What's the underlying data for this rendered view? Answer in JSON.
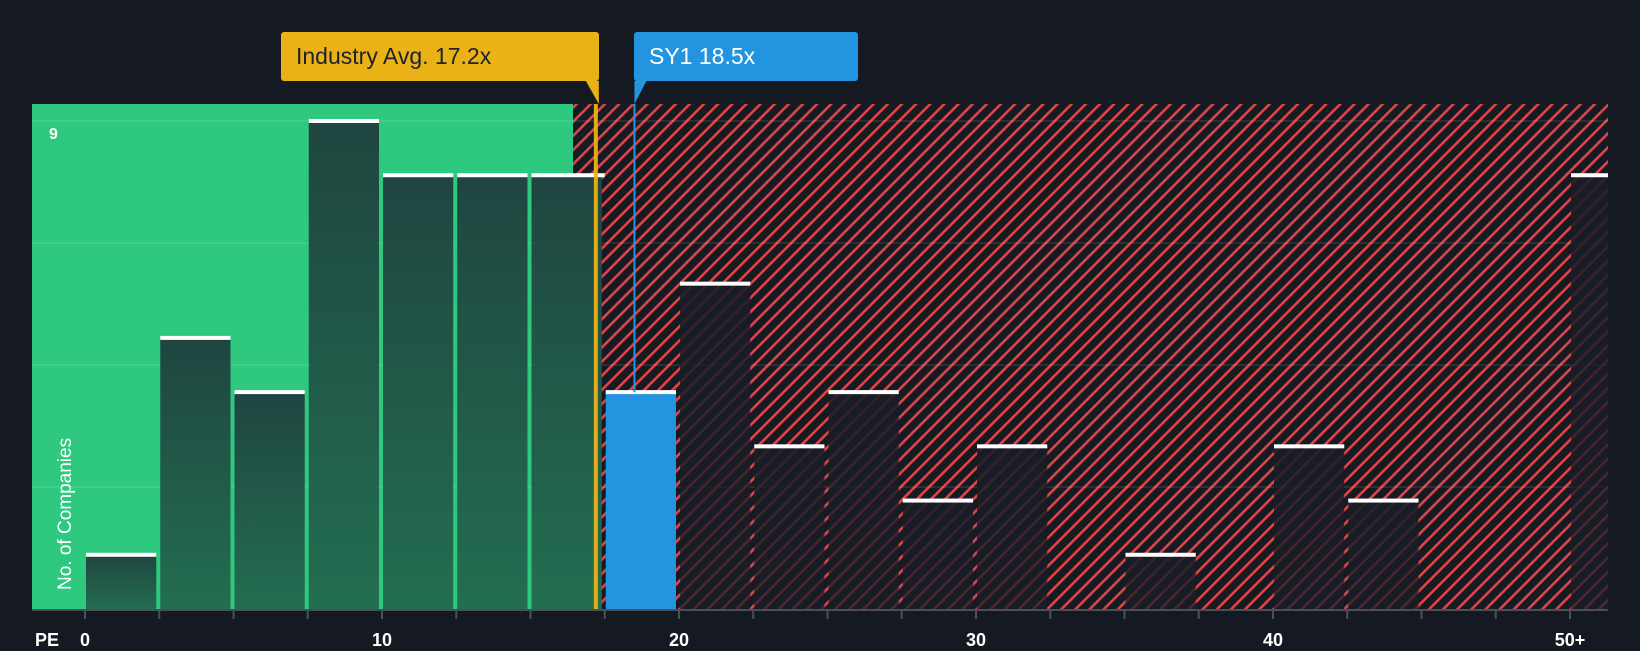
{
  "chart_data": {
    "type": "bar",
    "title": "",
    "xlabel": "PE",
    "ylabel": "No. of Companies",
    "ylim": [
      0,
      9
    ],
    "y_tick_labels": [
      "9"
    ],
    "x_tick_labels": [
      "0",
      "10",
      "20",
      "30",
      "40",
      "50+"
    ],
    "bin_width": 2.5,
    "categories": [
      "0-2.5",
      "2.5-5",
      "5-7.5",
      "7.5-10",
      "10-12.5",
      "12.5-15",
      "15-17.5",
      "17.5-20",
      "20-22.5",
      "22.5-25",
      "25-27.5",
      "27.5-30",
      "30-32.5",
      "32.5-35",
      "35-37.5",
      "37.5-40",
      "40-42.5",
      "42.5-45",
      "45-47.5",
      "47.5-50",
      "50+"
    ],
    "bin_starts": [
      0,
      2.5,
      5,
      7.5,
      10,
      12.5,
      15,
      17.5,
      20,
      22.5,
      25,
      27.5,
      30,
      32.5,
      35,
      37.5,
      40,
      42.5,
      45,
      47.5,
      50
    ],
    "values": [
      1,
      5,
      4,
      9,
      8,
      8,
      8,
      4,
      6,
      3,
      4,
      2,
      3,
      0,
      1,
      0,
      3,
      2,
      0,
      0,
      8
    ],
    "highlight_bin": "17.5-20",
    "annotations": [
      {
        "label": "Industry Avg. 17.2x",
        "value": 17.2,
        "color": "#eab216"
      },
      {
        "label": "SY1 18.5x",
        "value": 18.5,
        "color": "#2394e0"
      }
    ],
    "regions": [
      {
        "name": "undervalued",
        "from": 0,
        "to": 16.5,
        "color": "#2ec97f"
      },
      {
        "name": "overvalued",
        "from": 16.5,
        "to": 52.5,
        "color": "#e04444",
        "pattern": "hatched"
      }
    ],
    "grid": true,
    "legend": null
  },
  "labels": {
    "industry_avg": "Industry Avg. 17.2x",
    "company": "SY1 18.5x",
    "y_axis_title": "No. of Companies",
    "y_max": "9",
    "x_axis_title": "PE"
  },
  "colors": {
    "background": "#151a22",
    "green_zone": "#2ec97f",
    "hatch": "#e04444",
    "industry": "#eab216",
    "company": "#2394e0"
  }
}
